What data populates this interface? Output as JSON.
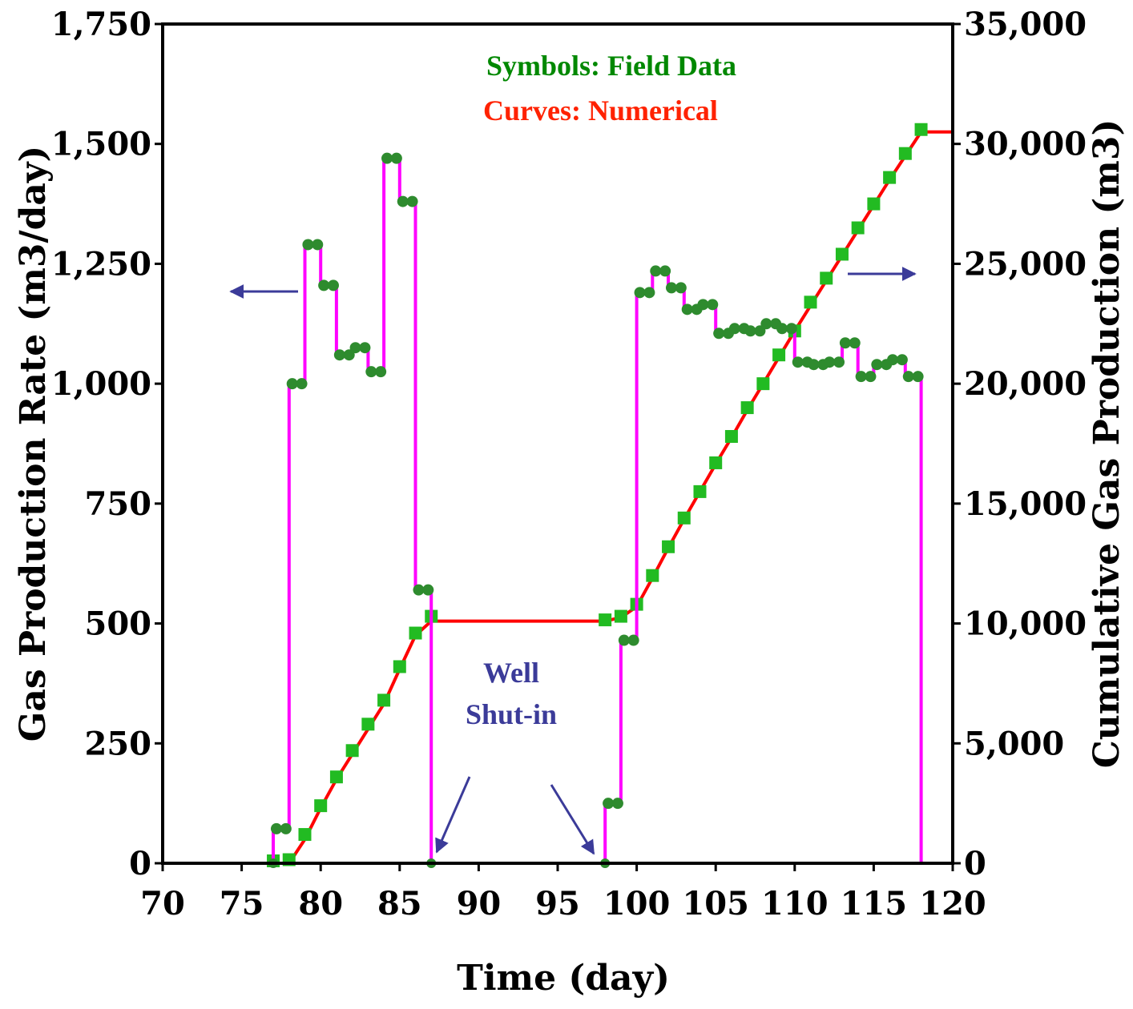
{
  "chart_data": {
    "type": "line",
    "xlabel": "Time (day)",
    "ylabel_left": "Gas Production Rate (m3/day)",
    "ylabel_right": "Cumulative Gas Production (m3)",
    "xlim": [
      70,
      120
    ],
    "ylim_left": [
      0,
      1750
    ],
    "ylim_right": [
      0,
      35000
    ],
    "x_ticks": [
      "70",
      "75",
      "80",
      "85",
      "90",
      "95",
      "100",
      "105",
      "110",
      "115",
      "120"
    ],
    "y_left_ticks": [
      "0",
      "250",
      "500",
      "750",
      "1,000",
      "1,250",
      "1,500",
      "1,750"
    ],
    "y_right_ticks": [
      "0",
      "5,000",
      "10,000",
      "15,000",
      "20,000",
      "25,000",
      "30,000",
      "35,000"
    ],
    "annotations": {
      "symbols_note": "Symbols: Field Data",
      "curves_note": "Curves: Numerical",
      "shutin_line1": "Well",
      "shutin_line2": "Shut-in"
    },
    "colors": {
      "rate_curve": "#ff00ff",
      "cumulative_curve": "#ff0000",
      "rate_markers": "#2e8b2e",
      "cumulative_markers": "#22bb22",
      "arrows": "#3b3b99",
      "symbols_note": "#008800",
      "curves_note": "#ff2200"
    },
    "rate_series": {
      "axis": "left",
      "steps": [
        {
          "x0": 70,
          "x1": 77,
          "y": 0
        },
        {
          "x0": 77,
          "x1": 78,
          "y": 72
        },
        {
          "x0": 78,
          "x1": 79,
          "y": 1000
        },
        {
          "x0": 79,
          "x1": 80,
          "y": 1290
        },
        {
          "x0": 80,
          "x1": 81,
          "y": 1205
        },
        {
          "x0": 81,
          "x1": 82,
          "y": 1060
        },
        {
          "x0": 82,
          "x1": 83,
          "y": 1075
        },
        {
          "x0": 83,
          "x1": 84,
          "y": 1025
        },
        {
          "x0": 84,
          "x1": 85,
          "y": 1470
        },
        {
          "x0": 85,
          "x1": 86,
          "y": 1380
        },
        {
          "x0": 86,
          "x1": 87,
          "y": 570
        },
        {
          "x0": 87,
          "x1": 98,
          "y": 0
        },
        {
          "x0": 98,
          "x1": 99,
          "y": 125
        },
        {
          "x0": 99,
          "x1": 100,
          "y": 465
        },
        {
          "x0": 100,
          "x1": 101,
          "y": 1190
        },
        {
          "x0": 101,
          "x1": 102,
          "y": 1235
        },
        {
          "x0": 102,
          "x1": 103,
          "y": 1200
        },
        {
          "x0": 103,
          "x1": 104,
          "y": 1155
        },
        {
          "x0": 104,
          "x1": 105,
          "y": 1165
        },
        {
          "x0": 105,
          "x1": 106,
          "y": 1105
        },
        {
          "x0": 106,
          "x1": 107,
          "y": 1115
        },
        {
          "x0": 107,
          "x1": 108,
          "y": 1110
        },
        {
          "x0": 108,
          "x1": 109,
          "y": 1125
        },
        {
          "x0": 109,
          "x1": 110,
          "y": 1115
        },
        {
          "x0": 110,
          "x1": 111,
          "y": 1045
        },
        {
          "x0": 111,
          "x1": 112,
          "y": 1040
        },
        {
          "x0": 112,
          "x1": 113,
          "y": 1045
        },
        {
          "x0": 113,
          "x1": 114,
          "y": 1085
        },
        {
          "x0": 114,
          "x1": 115,
          "y": 1015
        },
        {
          "x0": 115,
          "x1": 116,
          "y": 1040
        },
        {
          "x0": 116,
          "x1": 117,
          "y": 1050
        },
        {
          "x0": 117,
          "x1": 118,
          "y": 1015
        },
        {
          "x0": 118,
          "x1": 120,
          "y": 0
        }
      ]
    },
    "cumulative_curve": {
      "axis": "right",
      "x": [
        70,
        78,
        79,
        80,
        81,
        82,
        83,
        84,
        85,
        86,
        87,
        98,
        99,
        100,
        101,
        102,
        103,
        104,
        105,
        106,
        107,
        108,
        109,
        110,
        111,
        112,
        113,
        114,
        115,
        116,
        117,
        118,
        120
      ],
      "y": [
        0,
        0,
        1000,
        2300,
        3500,
        4550,
        5600,
        6650,
        8100,
        9500,
        10100,
        10100,
        10250,
        10700,
        11900,
        13150,
        14350,
        15500,
        16650,
        17750,
        18900,
        20000,
        21100,
        22200,
        23250,
        24300,
        25350,
        26400,
        27450,
        28500,
        29500,
        30500,
        30500
      ]
    },
    "cumulative_field_data": {
      "axis": "right",
      "x": [
        77,
        78,
        79,
        80,
        81,
        82,
        83,
        84,
        85,
        86,
        87,
        98,
        99,
        100,
        101,
        102,
        103,
        104,
        105,
        106,
        107,
        108,
        109,
        110,
        111,
        112,
        113,
        114,
        115,
        116,
        117,
        118
      ],
      "y": [
        100,
        150,
        1200,
        2400,
        3600,
        4700,
        5800,
        6800,
        8200,
        9600,
        10300,
        10150,
        10300,
        10800,
        12000,
        13200,
        14400,
        15500,
        16700,
        17800,
        19000,
        20000,
        21200,
        22200,
        23400,
        24400,
        25400,
        26500,
        27500,
        28600,
        29600,
        30600
      ]
    }
  }
}
